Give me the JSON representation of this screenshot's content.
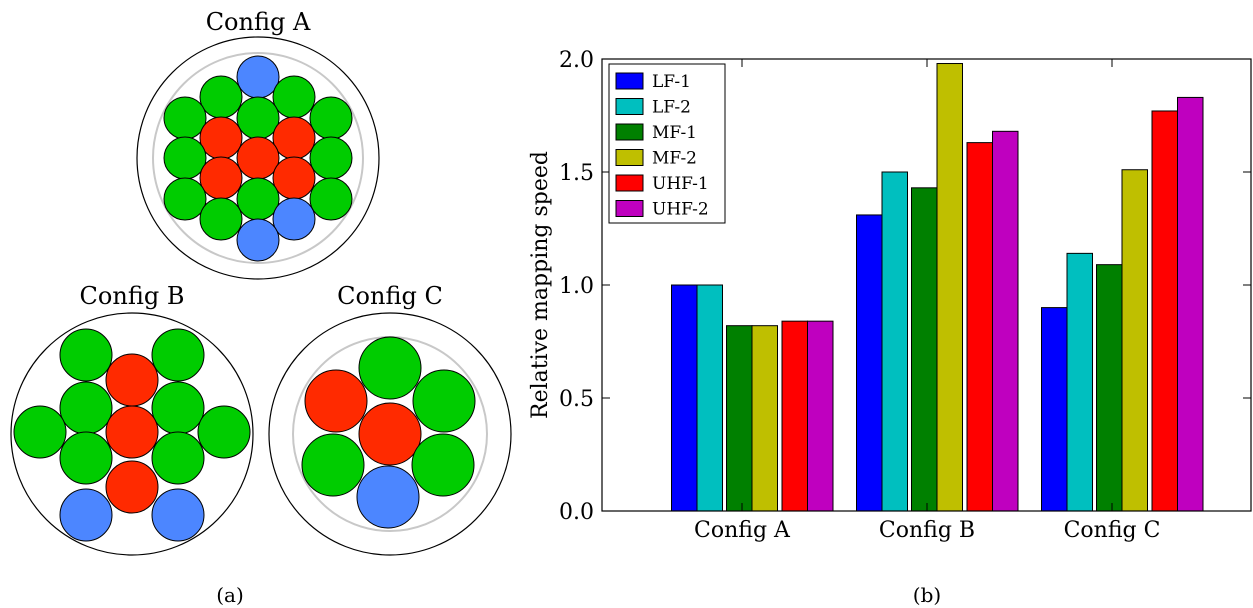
{
  "panel_a": {
    "caption": "(a)",
    "configs": [
      {
        "label": "Config A",
        "circles": [
          {
            "band": "LF"
          },
          {
            "band": "MF"
          },
          {
            "band": "MF"
          },
          {
            "band": "MF"
          },
          {
            "band": "MF"
          },
          {
            "band": "UHF"
          },
          {
            "band": "MF"
          },
          {
            "band": "UHF"
          },
          {
            "band": "MF"
          },
          {
            "band": "MF"
          },
          {
            "band": "UHF"
          },
          {
            "band": "UHF"
          },
          {
            "band": "MF"
          },
          {
            "band": "MF"
          },
          {
            "band": "UHF"
          },
          {
            "band": "MF"
          },
          {
            "band": "UHF"
          },
          {
            "band": "MF"
          },
          {
            "band": "MF"
          },
          {
            "band": "LF"
          },
          {
            "band": "LF"
          }
        ]
      },
      {
        "label": "Config B",
        "circles": [
          {
            "band": "MF"
          },
          {
            "band": "MF"
          },
          {
            "band": "UHF"
          },
          {
            "band": "MF"
          },
          {
            "band": "MF"
          },
          {
            "band": "MF"
          },
          {
            "band": "UHF"
          },
          {
            "band": "MF"
          },
          {
            "band": "MF"
          },
          {
            "band": "MF"
          },
          {
            "band": "UHF"
          },
          {
            "band": "LF"
          },
          {
            "band": "LF"
          }
        ]
      },
      {
        "label": "Config C",
        "circles": [
          {
            "band": "MF"
          },
          {
            "band": "UHF"
          },
          {
            "band": "MF"
          },
          {
            "band": "UHF"
          },
          {
            "band": "MF"
          },
          {
            "band": "MF"
          },
          {
            "band": "LF"
          }
        ]
      }
    ],
    "band_colors": {
      "LF": "#4c86ff",
      "MF": "#00cc00",
      "UHF": "#ff2a00"
    }
  },
  "panel_b": {
    "caption": "(b)"
  },
  "chart_data": {
    "type": "bar",
    "categories": [
      "Config A",
      "Config B",
      "Config C"
    ],
    "series": [
      {
        "name": "LF-1",
        "color": "#0000ff",
        "values": [
          1.0,
          1.31,
          0.9
        ]
      },
      {
        "name": "LF-2",
        "color": "#00bfbf",
        "values": [
          1.0,
          1.5,
          1.14
        ]
      },
      {
        "name": "MF-1",
        "color": "#008000",
        "values": [
          0.82,
          1.43,
          1.09
        ]
      },
      {
        "name": "MF-2",
        "color": "#bfbf00",
        "values": [
          0.82,
          1.98,
          1.51
        ]
      },
      {
        "name": "UHF-1",
        "color": "#ff0000",
        "values": [
          0.84,
          1.63,
          1.77
        ]
      },
      {
        "name": "UHF-2",
        "color": "#bf00bf",
        "values": [
          0.84,
          1.68,
          1.83
        ]
      }
    ],
    "title": "",
    "xlabel": "",
    "ylabel": "Relative mapping speed",
    "ylim": [
      0.0,
      2.0
    ],
    "yticks": [
      "0.0",
      "0.5",
      "1.0",
      "1.5",
      "2.0"
    ],
    "legend_position": "top-left",
    "grid": false
  }
}
